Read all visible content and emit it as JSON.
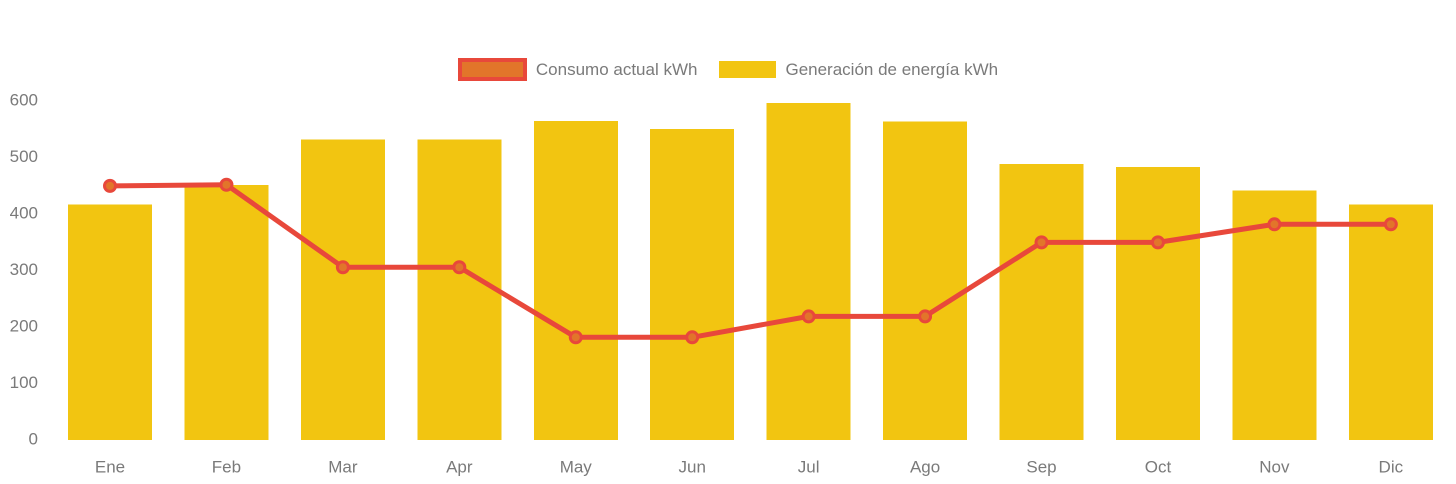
{
  "chart_data": {
    "type": "bar+line",
    "categories": [
      "Ene",
      "Feb",
      "Mar",
      "Apr",
      "May",
      "Jun",
      "Jul",
      "Ago",
      "Sep",
      "Oct",
      "Nov",
      "Dic"
    ],
    "series": [
      {
        "name": "Consumo actual kWh",
        "type": "line",
        "color": "#E8483B",
        "marker_fill": "#E2752A",
        "values": [
          448,
          450,
          304,
          304,
          180,
          180,
          217,
          217,
          348,
          348,
          380,
          380
        ]
      },
      {
        "name": "Generación de energía kWh",
        "type": "bar",
        "color": "#F2C511",
        "values": [
          415,
          450,
          530,
          530,
          563,
          549,
          595,
          562,
          487,
          481,
          440,
          415
        ]
      }
    ],
    "title": "",
    "xlabel": "",
    "ylabel": "",
    "ylim": [
      0,
      600
    ],
    "y_ticks": [
      0,
      100,
      200,
      300,
      400,
      500,
      600
    ],
    "grid": false,
    "legend_position": "top-center",
    "axis_text_color": "#7A7A7A"
  },
  "legend": {
    "items": [
      {
        "label": "Consumo actual kWh"
      },
      {
        "label": "Generación de energía kWh"
      }
    ]
  }
}
